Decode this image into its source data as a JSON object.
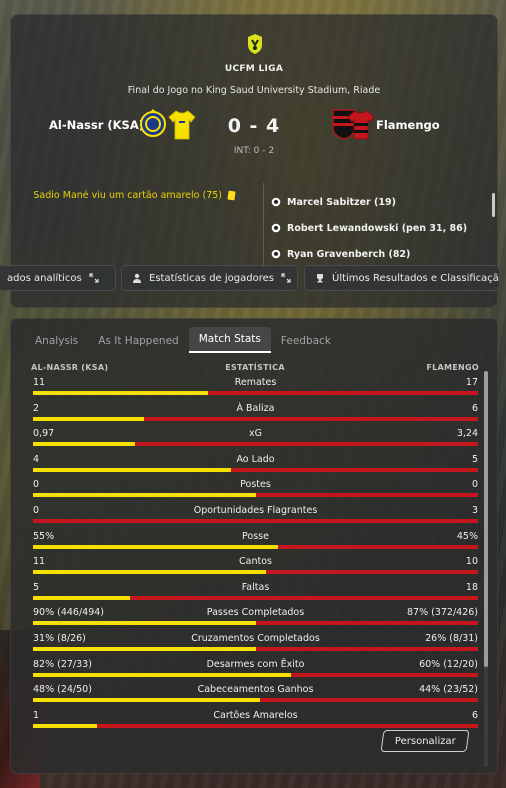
{
  "header": {
    "league": "UCFM LIGA",
    "venue": "Final do Jogo no King Saud University Stadium, Riade",
    "home_team": "Al-Nassr (KSA)",
    "away_team": "Flamengo",
    "score": "0 - 4",
    "interval": "INT: 0 - 2",
    "home_events": [
      {
        "text": "Sadio Mané viu um cartão amarelo (75)",
        "icon": "yellow-card-icon"
      }
    ],
    "away_events": [
      {
        "text": "Marcel Sabitzer (19)",
        "icon": "ball-icon"
      },
      {
        "text": "Robert Lewandowski (pen 31, 86)",
        "icon": "ball-icon"
      },
      {
        "text": "Ryan Gravenberch (82)",
        "icon": "ball-icon"
      }
    ],
    "colors": {
      "home_primary": "#f5e000",
      "away_primary": "#c4161c"
    }
  },
  "buttons": {
    "analytics": "ados analíticos",
    "player_stats": "Estatísticas de jogadores",
    "results": "Últimos Resultados e Classificaçã"
  },
  "tabs": [
    "Analysis",
    "As It Happened",
    "Match Stats",
    "Feedback"
  ],
  "active_tab": "Match Stats",
  "stats": {
    "header_home": "AL-NASSR (KSA)",
    "header_mid": "ESTATÍSTICA",
    "header_away": "FLAMENGO",
    "rows": [
      {
        "label": "Remates",
        "home": "11",
        "away": "17",
        "home_share": 0.393
      },
      {
        "label": "À Baliza",
        "home": "2",
        "away": "6",
        "home_share": 0.25
      },
      {
        "label": "xG",
        "home": "0,97",
        "away": "3,24",
        "home_share": 0.23
      },
      {
        "label": "Ao Lado",
        "home": "4",
        "away": "5",
        "home_share": 0.444
      },
      {
        "label": "Postes",
        "home": "0",
        "away": "0",
        "home_share": 0.5
      },
      {
        "label": "Oportunidades Flagrantes",
        "home": "0",
        "away": "3",
        "home_share": 0.0
      },
      {
        "label": "Posse",
        "home": "55%",
        "away": "45%",
        "home_share": 0.55
      },
      {
        "label": "Cantos",
        "home": "11",
        "away": "10",
        "home_share": 0.524
      },
      {
        "label": "Faltas",
        "home": "5",
        "away": "18",
        "home_share": 0.217
      },
      {
        "label": "Passes Completados",
        "home": "90% (446/494)",
        "away": "87% (372/426)",
        "home_share": 0.5
      },
      {
        "label": "Cruzamentos Completados",
        "home": "31% (8/26)",
        "away": "26% (8/31)",
        "home_share": 0.5
      },
      {
        "label": "Desarmes com Êxito",
        "home": "82% (27/33)",
        "away": "60% (12/20)",
        "home_share": 0.58
      },
      {
        "label": "Cabeceamentos Ganhos",
        "home": "48% (24/50)",
        "away": "44% (23/52)",
        "home_share": 0.51
      },
      {
        "label": "Cartões Amarelos",
        "home": "1",
        "away": "6",
        "home_share": 0.143
      }
    ]
  },
  "customize_label": "Personalizar"
}
